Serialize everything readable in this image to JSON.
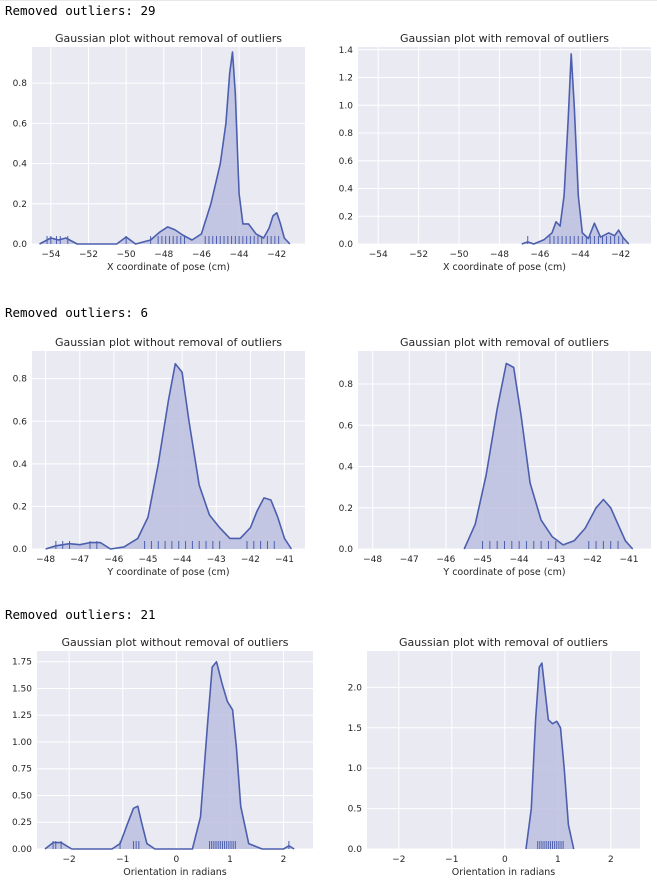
{
  "outputs": [
    {
      "text": "Removed outliers: 29"
    },
    {
      "text": "Removed outliers: 6"
    },
    {
      "text": "Removed outliers: 21"
    }
  ],
  "colors": {
    "plot_bg": "#eaeaf2",
    "grid": "#ffffff",
    "line": "#4c5fae",
    "fill": "#bcc0e0",
    "text": "#262626"
  },
  "chart_data": [
    {
      "type": "area",
      "title": "Gaussian plot without removal of outliers",
      "xlabel": "X coordinate of pose (cm)",
      "ylabel": "",
      "xlim": [
        -55,
        -40.5
      ],
      "ylim": [
        0,
        0.98
      ],
      "xticks": [
        -54,
        -52,
        -50,
        -48,
        -46,
        -44,
        -42
      ],
      "yticks": [
        0.0,
        0.2,
        0.4,
        0.6,
        0.8
      ],
      "grid": true,
      "x": [
        -54.6,
        -54.0,
        -53.6,
        -53.2,
        -52.6,
        -51.0,
        -50.5,
        -50.0,
        -49.5,
        -48.7,
        -48.2,
        -47.8,
        -47.4,
        -47.0,
        -46.5,
        -46.0,
        -45.5,
        -45.0,
        -44.7,
        -44.5,
        -44.35,
        -44.2,
        -44.0,
        -43.8,
        -43.5,
        -43.1,
        -42.7,
        -42.4,
        -42.2,
        -42.0,
        -41.8,
        -41.6,
        -41.3
      ],
      "y": [
        0.0,
        0.03,
        0.02,
        0.03,
        0.0,
        0.0,
        0.0,
        0.035,
        0.0,
        0.02,
        0.06,
        0.085,
        0.07,
        0.045,
        0.02,
        0.05,
        0.2,
        0.4,
        0.6,
        0.85,
        0.955,
        0.75,
        0.25,
        0.1,
        0.1,
        0.05,
        0.03,
        0.08,
        0.14,
        0.155,
        0.1,
        0.03,
        0.0
      ],
      "rug": [
        -54.2,
        -54.0,
        -53.7,
        -53.5,
        -53.1,
        -50.0,
        -48.7,
        -48.3,
        -48.1,
        -47.9,
        -47.7,
        -47.5,
        -47.3,
        -47.1,
        -46.9,
        -45.8,
        -45.6,
        -45.4,
        -45.2,
        -45.0,
        -44.8,
        -44.6,
        -44.4,
        -44.2,
        -44.0,
        -43.8,
        -43.6,
        -43.4,
        -43.2,
        -43.0,
        -42.8,
        -42.5,
        -42.3,
        -42.1,
        -41.9
      ]
    },
    {
      "type": "area",
      "title": "Gaussian plot with removal of outliers",
      "xlabel": "X coordinate of pose (cm)",
      "ylabel": "",
      "xlim": [
        -55,
        -40.5
      ],
      "ylim": [
        0,
        1.42
      ],
      "xticks": [
        -54,
        -52,
        -50,
        -48,
        -46,
        -44,
        -42
      ],
      "yticks": [
        0.0,
        0.2,
        0.4,
        0.6,
        0.8,
        1.0,
        1.2,
        1.4
      ],
      "grid": true,
      "x": [
        -46.9,
        -46.6,
        -46.3,
        -45.8,
        -45.4,
        -45.2,
        -45.0,
        -44.8,
        -44.6,
        -44.45,
        -44.3,
        -44.1,
        -43.9,
        -43.6,
        -43.3,
        -43.0,
        -42.6,
        -42.3,
        -42.1,
        -41.9,
        -41.6
      ],
      "y": [
        0.0,
        0.015,
        0.0,
        0.03,
        0.08,
        0.16,
        0.13,
        0.35,
        0.9,
        1.37,
        1.0,
        0.35,
        0.08,
        0.04,
        0.15,
        0.05,
        0.08,
        0.06,
        0.1,
        0.05,
        0.0
      ],
      "rug": [
        -46.6,
        -45.5,
        -45.3,
        -45.1,
        -44.9,
        -44.7,
        -44.5,
        -44.3,
        -44.1,
        -43.9,
        -43.7,
        -43.5,
        -43.3,
        -43.1,
        -42.9,
        -42.7,
        -42.5,
        -42.3,
        -42.1,
        -41.9
      ]
    },
    {
      "type": "area",
      "title": "Gaussian plot without removal of outliers",
      "xlabel": "Y coordinate of pose (cm)",
      "ylabel": "",
      "xlim": [
        -48.4,
        -40.4
      ],
      "ylim": [
        0,
        0.93
      ],
      "xticks": [
        -48,
        -47,
        -46,
        -45,
        -44,
        -43,
        -42,
        -41
      ],
      "yticks": [
        0.0,
        0.2,
        0.4,
        0.6,
        0.8
      ],
      "grid": true,
      "x": [
        -48.0,
        -47.7,
        -47.3,
        -47.0,
        -46.7,
        -46.4,
        -46.1,
        -45.7,
        -45.3,
        -45.0,
        -44.7,
        -44.4,
        -44.2,
        -44.0,
        -43.8,
        -43.5,
        -43.2,
        -42.9,
        -42.6,
        -42.3,
        -42.0,
        -41.8,
        -41.6,
        -41.4,
        -41.2,
        -41.0,
        -40.8
      ],
      "y": [
        0.0,
        0.015,
        0.025,
        0.02,
        0.03,
        0.03,
        0.0,
        0.01,
        0.05,
        0.15,
        0.4,
        0.7,
        0.87,
        0.83,
        0.6,
        0.3,
        0.16,
        0.1,
        0.05,
        0.05,
        0.1,
        0.18,
        0.24,
        0.23,
        0.15,
        0.05,
        0.0
      ],
      "rug": [
        -47.7,
        -47.5,
        -47.3,
        -46.7,
        -46.5,
        -45.1,
        -44.9,
        -44.7,
        -44.5,
        -44.3,
        -44.1,
        -43.9,
        -43.7,
        -43.5,
        -43.3,
        -43.1,
        -42.9,
        -42.1,
        -41.9,
        -41.7,
        -41.5,
        -41.3
      ]
    },
    {
      "type": "area",
      "title": "Gaussian plot with removal of outliers",
      "xlabel": "Y coordinate of pose (cm)",
      "ylabel": "",
      "xlim": [
        -48.4,
        -40.4
      ],
      "ylim": [
        0,
        0.96
      ],
      "xticks": [
        -48,
        -47,
        -46,
        -45,
        -44,
        -43,
        -42,
        -41
      ],
      "yticks": [
        0.0,
        0.2,
        0.4,
        0.6,
        0.8
      ],
      "grid": true,
      "x": [
        -45.5,
        -45.2,
        -44.9,
        -44.6,
        -44.35,
        -44.15,
        -43.95,
        -43.7,
        -43.4,
        -43.1,
        -42.8,
        -42.5,
        -42.2,
        -41.9,
        -41.7,
        -41.5,
        -41.3,
        -41.1,
        -40.9
      ],
      "y": [
        0.0,
        0.12,
        0.36,
        0.68,
        0.9,
        0.88,
        0.65,
        0.32,
        0.14,
        0.06,
        0.02,
        0.04,
        0.1,
        0.2,
        0.24,
        0.2,
        0.12,
        0.04,
        0.0
      ],
      "rug": [
        -45.0,
        -44.8,
        -44.6,
        -44.4,
        -44.2,
        -44.0,
        -43.8,
        -43.6,
        -43.4,
        -43.2,
        -43.0,
        -42.1,
        -41.9,
        -41.7,
        -41.5,
        -41.3
      ]
    },
    {
      "type": "area",
      "title": "Gaussian plot without removal of outliers",
      "xlabel": "Orientation in radians",
      "ylabel": "",
      "xlim": [
        -2.6,
        2.55
      ],
      "ylim": [
        0,
        1.85
      ],
      "xticks": [
        -2,
        -1,
        0,
        1,
        2
      ],
      "yticks": [
        0.0,
        0.25,
        0.5,
        0.75,
        1.0,
        1.25,
        1.5,
        1.75
      ],
      "grid": true,
      "x": [
        -2.45,
        -2.3,
        -2.15,
        -1.95,
        -1.2,
        -1.05,
        -0.9,
        -0.8,
        -0.72,
        -0.65,
        -0.55,
        -0.4,
        0.3,
        0.45,
        0.58,
        0.67,
        0.75,
        0.85,
        0.95,
        1.05,
        1.12,
        1.2,
        1.35,
        1.6,
        2.0,
        2.1,
        2.2
      ],
      "y": [
        0.0,
        0.06,
        0.06,
        0.0,
        0.0,
        0.05,
        0.25,
        0.38,
        0.4,
        0.25,
        0.05,
        0.0,
        0.0,
        0.3,
        1.15,
        1.7,
        1.75,
        1.55,
        1.38,
        1.3,
        0.95,
        0.4,
        0.05,
        0.0,
        0.0,
        0.03,
        0.0
      ],
      "rug": [
        -2.3,
        -2.25,
        -2.15,
        -1.05,
        -0.8,
        -0.75,
        -0.7,
        0.62,
        0.66,
        0.7,
        0.74,
        0.78,
        0.82,
        0.86,
        0.9,
        0.94,
        0.98,
        1.02,
        1.06,
        1.1,
        2.1
      ]
    },
    {
      "type": "area",
      "title": "Gaussian plot with removal of outliers",
      "xlabel": "Orientation in radians",
      "ylabel": "",
      "xlim": [
        -2.6,
        2.55
      ],
      "ylim": [
        0,
        2.45
      ],
      "xticks": [
        -2,
        -1,
        0,
        1,
        2
      ],
      "yticks": [
        0.0,
        0.5,
        1.0,
        1.5,
        2.0
      ],
      "grid": true,
      "x": [
        0.4,
        0.5,
        0.58,
        0.65,
        0.7,
        0.76,
        0.82,
        0.9,
        0.98,
        1.05,
        1.12,
        1.2,
        1.3
      ],
      "y": [
        0.0,
        0.5,
        1.6,
        2.25,
        2.3,
        1.95,
        1.6,
        1.55,
        1.58,
        1.5,
        1.0,
        0.3,
        0.0
      ],
      "rug": [
        0.62,
        0.66,
        0.7,
        0.74,
        0.78,
        0.82,
        0.86,
        0.9,
        0.94,
        0.98,
        1.02,
        1.06,
        1.1
      ]
    }
  ]
}
